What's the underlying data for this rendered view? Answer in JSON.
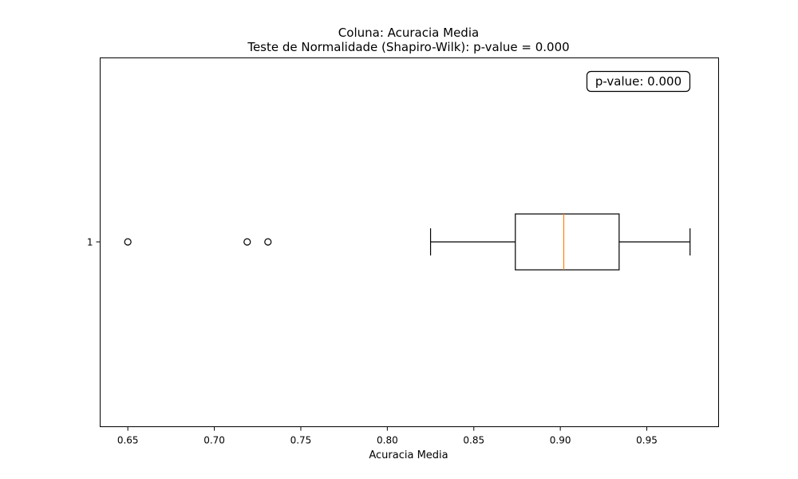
{
  "chart_data": {
    "type": "boxplot",
    "orientation": "horizontal",
    "title": "Coluna: Acuracia Media",
    "subtitle": "Teste de Normalidade (Shapiro-Wilk): p-value = 0.000",
    "xlabel": "Acuracia Media",
    "ylabel": "",
    "xlim": [
      0.634,
      0.9915
    ],
    "x_ticks": [
      0.65,
      0.7,
      0.75,
      0.8,
      0.85,
      0.9,
      0.95
    ],
    "x_tick_labels": [
      "0.65",
      "0.70",
      "0.75",
      "0.80",
      "0.85",
      "0.90",
      "0.95"
    ],
    "y_tick_labels": [
      "1"
    ],
    "box": {
      "whisker_low": 0.825,
      "q1": 0.874,
      "median": 0.902,
      "q3": 0.934,
      "whisker_high": 0.975,
      "outliers": [
        0.65,
        0.719,
        0.731
      ]
    },
    "annotation": "p-value: 0.000",
    "colors": {
      "median": "#ff7f0e",
      "box": "#000000",
      "background": "#ffffff"
    },
    "grid": false,
    "legend": "none"
  }
}
